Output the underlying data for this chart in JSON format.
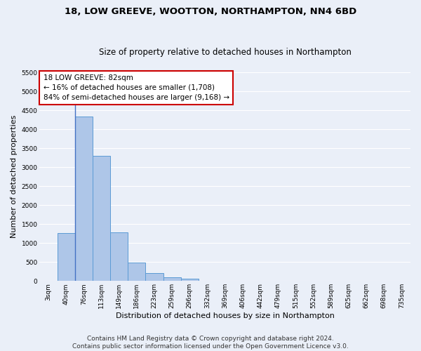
{
  "title_line1": "18, LOW GREEVE, WOOTTON, NORTHAMPTON, NN4 6BD",
  "title_line2": "Size of property relative to detached houses in Northampton",
  "xlabel": "Distribution of detached houses by size in Northampton",
  "ylabel": "Number of detached properties",
  "footnote": "Contains HM Land Registry data © Crown copyright and database right 2024.\nContains public sector information licensed under the Open Government Licence v3.0.",
  "bar_labels": [
    "3sqm",
    "40sqm",
    "76sqm",
    "113sqm",
    "149sqm",
    "186sqm",
    "223sqm",
    "259sqm",
    "296sqm",
    "332sqm",
    "369sqm",
    "406sqm",
    "442sqm",
    "479sqm",
    "515sqm",
    "552sqm",
    "589sqm",
    "625sqm",
    "662sqm",
    "698sqm",
    "735sqm"
  ],
  "bar_values": [
    0,
    1270,
    4340,
    3300,
    1280,
    490,
    215,
    90,
    55,
    0,
    0,
    0,
    0,
    0,
    0,
    0,
    0,
    0,
    0,
    0,
    0
  ],
  "bar_color": "#aec6e8",
  "bar_edge_color": "#5b9bd5",
  "highlight_line_color": "#4472c4",
  "ylim": [
    0,
    5500
  ],
  "yticks": [
    0,
    500,
    1000,
    1500,
    2000,
    2500,
    3000,
    3500,
    4000,
    4500,
    5000,
    5500
  ],
  "annotation_text": "18 LOW GREEVE: 82sqm\n← 16% of detached houses are smaller (1,708)\n84% of semi-detached houses are larger (9,168) →",
  "annotation_box_color": "#ffffff",
  "annotation_box_edge": "#cc0000",
  "bg_color": "#eaeff8",
  "grid_color": "#ffffff",
  "title1_fontsize": 9.5,
  "title2_fontsize": 8.5,
  "axis_label_fontsize": 8,
  "tick_fontsize": 6.5,
  "annotation_fontsize": 7.5,
  "footnote_fontsize": 6.5
}
